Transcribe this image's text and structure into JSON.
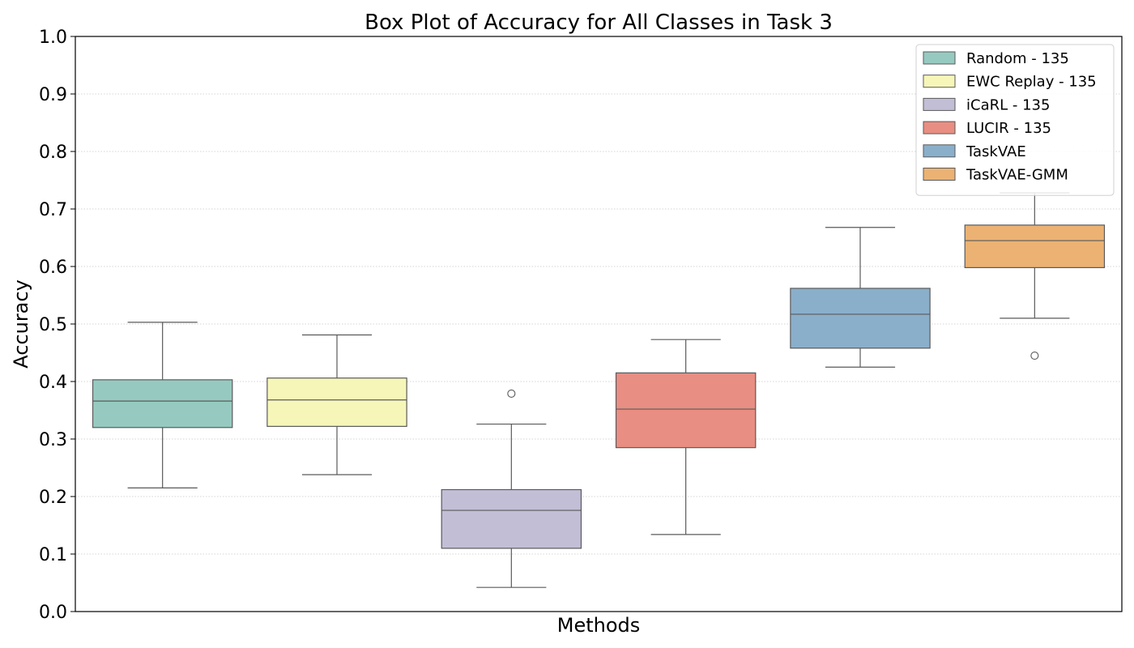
{
  "chart_data": {
    "type": "box",
    "title": "Box Plot of Accuracy for All Classes in Task 3",
    "xlabel": "Methods",
    "ylabel": "Accuracy",
    "ylim": [
      0.0,
      1.0
    ],
    "yticks": [
      0.0,
      0.1,
      0.2,
      0.3,
      0.4,
      0.5,
      0.6,
      0.7,
      0.8,
      0.9,
      1.0
    ],
    "ytick_labels": [
      "0.0",
      "0.1",
      "0.2",
      "0.3",
      "0.4",
      "0.5",
      "0.6",
      "0.7",
      "0.8",
      "0.9",
      "1.0"
    ],
    "grid": "y-dotted",
    "legend_position": "top-right",
    "series": [
      {
        "name": "Random - 135",
        "color": "#96cac0",
        "whisker_low": 0.215,
        "q1": 0.32,
        "median": 0.366,
        "q3": 0.403,
        "whisker_high": 0.503,
        "outliers": []
      },
      {
        "name": "EWC Replay - 135",
        "color": "#f6f6b9",
        "whisker_low": 0.238,
        "q1": 0.322,
        "median": 0.368,
        "q3": 0.406,
        "whisker_high": 0.481,
        "outliers": []
      },
      {
        "name": "iCaRL - 135",
        "color": "#c2bed6",
        "whisker_low": 0.042,
        "q1": 0.11,
        "median": 0.176,
        "q3": 0.212,
        "whisker_high": 0.326,
        "outliers": [
          0.379
        ]
      },
      {
        "name": "LUCIR - 135",
        "color": "#e88e83",
        "whisker_low": 0.134,
        "q1": 0.285,
        "median": 0.352,
        "q3": 0.415,
        "whisker_high": 0.473,
        "outliers": []
      },
      {
        "name": "TaskVAE",
        "color": "#8aafca",
        "whisker_low": 0.425,
        "q1": 0.458,
        "median": 0.517,
        "q3": 0.562,
        "whisker_high": 0.668,
        "outliers": []
      },
      {
        "name": "TaskVAE-GMM",
        "color": "#ebb273",
        "whisker_low": 0.51,
        "q1": 0.598,
        "median": 0.645,
        "q3": 0.672,
        "whisker_high": 0.728,
        "outliers": [
          0.445
        ]
      }
    ]
  }
}
